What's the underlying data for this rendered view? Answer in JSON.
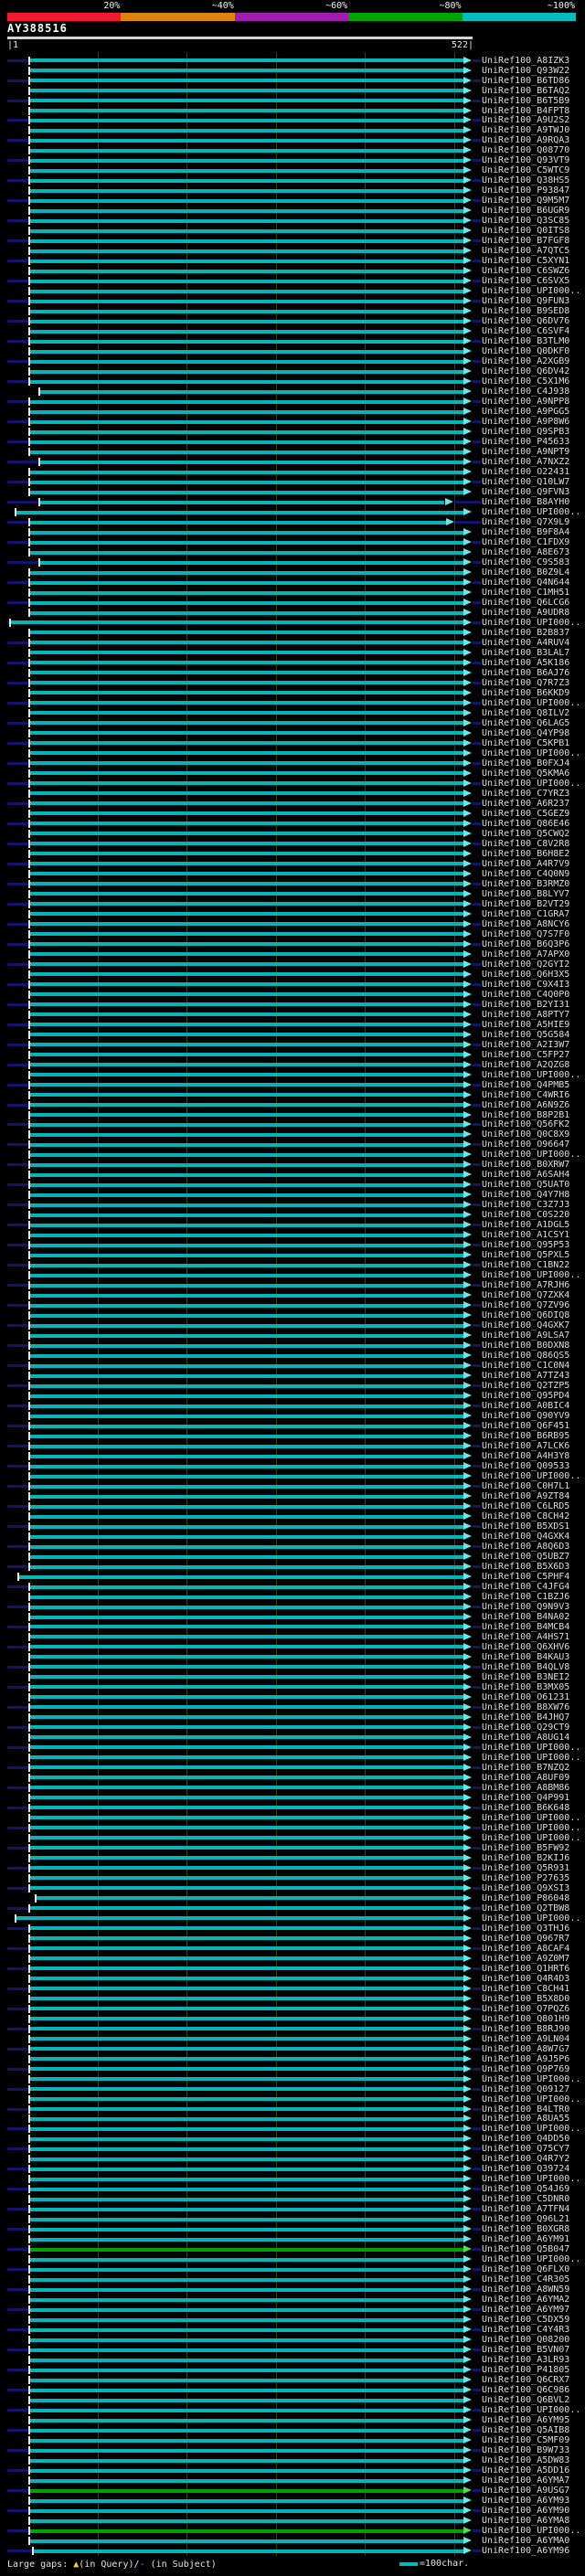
{
  "chart_data": {
    "type": "table",
    "title": "AY388516",
    "query_name": "AY388516",
    "query_length": 522,
    "ruler": {
      "start_label": "|1",
      "end_label": "522|",
      "tick_every_chars": 100
    },
    "identity_scale": [
      {
        "label": "20%",
        "color": "#f31931"
      },
      {
        "label": "~40%",
        "color": "#e0820f"
      },
      {
        "label": "~60%",
        "color": "#a21caf"
      },
      {
        "label": "~80%",
        "color": "#00a400"
      },
      {
        "label": "~100%",
        "color": "#00bcbc"
      }
    ],
    "bar_colors": {
      "~100%": {
        "bar": "#00b6b6",
        "arrow": "#6fe6e6"
      },
      "~80%": {
        "bar": "#00a400",
        "arrow": "#5cd65c"
      }
    },
    "hit_defaults": {
      "from": 27,
      "to": 522,
      "identity": "~100%"
    },
    "hits": [
      {
        "label": "UniRef100_A8IZK3"
      },
      {
        "label": "UniRef100_Q93W22"
      },
      {
        "label": "UniRef100_B6TD86"
      },
      {
        "label": "UniRef100_B6TAQ2"
      },
      {
        "label": "UniRef100_B6T5B9"
      },
      {
        "label": "UniRef100_B4FPT8"
      },
      {
        "label": "UniRef100_A9U2S2"
      },
      {
        "label": "UniRef100_A9TWJ0"
      },
      {
        "label": "UniRef100_A9RQA3"
      },
      {
        "label": "UniRef100_Q08770"
      },
      {
        "label": "UniRef100_Q93VT9"
      },
      {
        "label": "UniRef100_C5WTC9"
      },
      {
        "label": "UniRef100_Q38HS5"
      },
      {
        "label": "UniRef100_P93847"
      },
      {
        "label": "UniRef100_Q9M5M7"
      },
      {
        "label": "UniRef100_B6UGR9"
      },
      {
        "label": "UniRef100_Q3SC85"
      },
      {
        "label": "UniRef100_Q0ITS8"
      },
      {
        "label": "UniRef100_B7FGF8"
      },
      {
        "label": "UniRef100_A7QTC5"
      },
      {
        "label": "UniRef100_C5XYN1"
      },
      {
        "label": "UniRef100_C6SWZ6"
      },
      {
        "label": "UniRef100_C6SVX5"
      },
      {
        "label": "UniRef100_UPI000.."
      },
      {
        "label": "UniRef100_Q9FUN3"
      },
      {
        "label": "UniRef100_B9SED8"
      },
      {
        "label": "UniRef100_Q6DV76"
      },
      {
        "label": "UniRef100_C6SVF4"
      },
      {
        "label": "UniRef100_B3TLM0"
      },
      {
        "label": "UniRef100_Q0DKF0"
      },
      {
        "label": "UniRef100_A2XGB9"
      },
      {
        "label": "UniRef100_Q6DV42"
      },
      {
        "label": "UniRef100_C5X1M6"
      },
      {
        "label": "UniRef100_C4J938",
        "from": 38
      },
      {
        "label": "UniRef100_A9NPP8"
      },
      {
        "label": "UniRef100_A9PGG5"
      },
      {
        "label": "UniRef100_A9P8W6"
      },
      {
        "label": "UniRef100_Q9SPB3"
      },
      {
        "label": "UniRef100_P45633"
      },
      {
        "label": "UniRef100_A9NPT9"
      },
      {
        "label": "UniRef100_A7NXZ2",
        "from": 38
      },
      {
        "label": "UniRef100_O22431"
      },
      {
        "label": "UniRef100_Q10LW7"
      },
      {
        "label": "UniRef100_Q9FVN3"
      },
      {
        "label": "UniRef100_B8AYH0",
        "from": 38,
        "to": 501
      },
      {
        "label": "UniRef100_UPI000..",
        "from": 11
      },
      {
        "label": "UniRef100_Q7X9L9",
        "to": 503
      },
      {
        "label": "UniRef100_B9F8A4"
      },
      {
        "label": "UniRef100_C1FDX9"
      },
      {
        "label": "UniRef100_A8E673"
      },
      {
        "label": "UniRef100_C9S583",
        "from": 38
      },
      {
        "label": "UniRef100_B0Z9L4"
      },
      {
        "label": "UniRef100_Q4N644"
      },
      {
        "label": "UniRef100_C1MH51"
      },
      {
        "label": "UniRef100_Q6LCG6"
      },
      {
        "label": "UniRef100_A9UDR8"
      },
      {
        "label": "UniRef100_UPI000..",
        "from": 5
      },
      {
        "label": "UniRef100_B2B837"
      },
      {
        "label": "UniRef100_A4RUV4"
      },
      {
        "label": "UniRef100_B3LAL7"
      },
      {
        "label": "UniRef100_A5K186"
      },
      {
        "label": "UniRef100_B6AJ76"
      },
      {
        "label": "UniRef100_Q7R7Z3"
      },
      {
        "label": "UniRef100_B6KKD9"
      },
      {
        "label": "UniRef100_UPI000.."
      },
      {
        "label": "UniRef100_Q8ILV2"
      },
      {
        "label": "UniRef100_Q6LAG5"
      },
      {
        "label": "UniRef100_Q4YP98"
      },
      {
        "label": "UniRef100_C5KPB1"
      },
      {
        "label": "UniRef100_UPI000.."
      },
      {
        "label": "UniRef100_B0FXJ4"
      },
      {
        "label": "UniRef100_Q5KMA6"
      },
      {
        "label": "UniRef100_UPI000.."
      },
      {
        "label": "UniRef100_C7YRZ3"
      },
      {
        "label": "UniRef100_A6R237"
      },
      {
        "label": "UniRef100_C5GEZ9"
      },
      {
        "label": "UniRef100_Q86E46"
      },
      {
        "label": "UniRef100_Q5CWQ2"
      },
      {
        "label": "UniRef100_C8V2R8"
      },
      {
        "label": "UniRef100_B6H8E2"
      },
      {
        "label": "UniRef100_A4R7V9"
      },
      {
        "label": "UniRef100_C4Q0N9"
      },
      {
        "label": "UniRef100_B3RMZ0"
      },
      {
        "label": "UniRef100_B8LYV7"
      },
      {
        "label": "UniRef100_B2VT29"
      },
      {
        "label": "UniRef100_C1GRA7"
      },
      {
        "label": "UniRef100_A8NCY6"
      },
      {
        "label": "UniRef100_Q7S7F0"
      },
      {
        "label": "UniRef100_B6Q3P6"
      },
      {
        "label": "UniRef100_A7APX0"
      },
      {
        "label": "UniRef100_Q2GYI2"
      },
      {
        "label": "UniRef100_Q6H3X5"
      },
      {
        "label": "UniRef100_C9X4I3"
      },
      {
        "label": "UniRef100_C4Q0P0"
      },
      {
        "label": "UniRef100_B2YI31"
      },
      {
        "label": "UniRef100_A8PTY7"
      },
      {
        "label": "UniRef100_A5HIE9"
      },
      {
        "label": "UniRef100_Q5G584"
      },
      {
        "label": "UniRef100_A2I3W7"
      },
      {
        "label": "UniRef100_C5FP27"
      },
      {
        "label": "UniRef100_A2QZG8"
      },
      {
        "label": "UniRef100_UPI000.."
      },
      {
        "label": "UniRef100_Q4PMB5"
      },
      {
        "label": "UniRef100_C4WRI6"
      },
      {
        "label": "UniRef100_A6N9Z6"
      },
      {
        "label": "UniRef100_B8P2B1"
      },
      {
        "label": "UniRef100_Q56FK2"
      },
      {
        "label": "UniRef100_Q0C8X9"
      },
      {
        "label": "UniRef100_O96647"
      },
      {
        "label": "UniRef100_UPI000.."
      },
      {
        "label": "UniRef100_B0XRW7"
      },
      {
        "label": "UniRef100_A6SAH4"
      },
      {
        "label": "UniRef100_Q5UAT0"
      },
      {
        "label": "UniRef100_Q4Y7H8"
      },
      {
        "label": "UniRef100_C3Z7J3"
      },
      {
        "label": "UniRef100_C0S220"
      },
      {
        "label": "UniRef100_A1DGL5"
      },
      {
        "label": "UniRef100_A1CSY1"
      },
      {
        "label": "UniRef100_Q95P53"
      },
      {
        "label": "UniRef100_Q5PXL5"
      },
      {
        "label": "UniRef100_C1BN22"
      },
      {
        "label": "UniRef100_UPI000.."
      },
      {
        "label": "UniRef100_A7RJH6"
      },
      {
        "label": "UniRef100_Q7ZXK4"
      },
      {
        "label": "UniRef100_Q7ZV96"
      },
      {
        "label": "UniRef100_Q6DIQ8"
      },
      {
        "label": "UniRef100_Q4GXK7"
      },
      {
        "label": "UniRef100_A9LSA7"
      },
      {
        "label": "UniRef100_B0DXN8"
      },
      {
        "label": "UniRef100_Q86QS5"
      },
      {
        "label": "UniRef100_C1C0N4"
      },
      {
        "label": "UniRef100_A7TZ43"
      },
      {
        "label": "UniRef100_Q2TZP5"
      },
      {
        "label": "UniRef100_Q95PD4"
      },
      {
        "label": "UniRef100_A0BIC4"
      },
      {
        "label": "UniRef100_Q90YV9"
      },
      {
        "label": "UniRef100_Q6F451"
      },
      {
        "label": "UniRef100_B6RB95"
      },
      {
        "label": "UniRef100_A7LCK6"
      },
      {
        "label": "UniRef100_A4H3Y8"
      },
      {
        "label": "UniRef100_Q09533"
      },
      {
        "label": "UniRef100_UPI000.."
      },
      {
        "label": "UniRef100_C0H7L1"
      },
      {
        "label": "UniRef100_A9ZT84"
      },
      {
        "label": "UniRef100_C6LRD5"
      },
      {
        "label": "UniRef100_C8CH42"
      },
      {
        "label": "UniRef100_B5XDS1"
      },
      {
        "label": "UniRef100_Q4GXK4"
      },
      {
        "label": "UniRef100_A8Q6D3"
      },
      {
        "label": "UniRef100_Q5UBZ7"
      },
      {
        "label": "UniRef100_B5X6D3"
      },
      {
        "label": "UniRef100_C5PHF4",
        "from": 14
      },
      {
        "label": "UniRef100_C4JFG4"
      },
      {
        "label": "UniRef100_C1BZJ6"
      },
      {
        "label": "UniRef100_Q9N9V3"
      },
      {
        "label": "UniRef100_B4NA02"
      },
      {
        "label": "UniRef100_B4MCB4"
      },
      {
        "label": "UniRef100_A4HS71"
      },
      {
        "label": "UniRef100_Q6XHV6"
      },
      {
        "label": "UniRef100_B4KAU3"
      },
      {
        "label": "UniRef100_B4QLV8"
      },
      {
        "label": "UniRef100_B3NEI2"
      },
      {
        "label": "UniRef100_B3MX05"
      },
      {
        "label": "UniRef100_O61231"
      },
      {
        "label": "UniRef100_B8XW76"
      },
      {
        "label": "UniRef100_B4JHQ7"
      },
      {
        "label": "UniRef100_Q29CT9"
      },
      {
        "label": "UniRef100_A8UG14"
      },
      {
        "label": "UniRef100_UPI000.."
      },
      {
        "label": "UniRef100_UPI000.."
      },
      {
        "label": "UniRef100_B7NZQ2"
      },
      {
        "label": "UniRef100_A8UF09"
      },
      {
        "label": "UniRef100_A8BM86"
      },
      {
        "label": "UniRef100_Q4P991"
      },
      {
        "label": "UniRef100_B6K648"
      },
      {
        "label": "UniRef100_UPI000.."
      },
      {
        "label": "UniRef100_UPI000.."
      },
      {
        "label": "UniRef100_UPI000.."
      },
      {
        "label": "UniRef100_B5FW92"
      },
      {
        "label": "UniRef100_B2KIJ6"
      },
      {
        "label": "UniRef100_Q5R931"
      },
      {
        "label": "UniRef100_P27635"
      },
      {
        "label": "UniRef100_Q9XSI3"
      },
      {
        "label": "UniRef100_P86048",
        "from": 34
      },
      {
        "label": "UniRef100_Q2TBW8"
      },
      {
        "label": "UniRef100_UPI000..",
        "from": 11
      },
      {
        "label": "UniRef100_Q3THJ6"
      },
      {
        "label": "UniRef100_Q967R7"
      },
      {
        "label": "UniRef100_A8CAF4"
      },
      {
        "label": "UniRef100_A9Z0M7"
      },
      {
        "label": "UniRef100_Q1HRT6"
      },
      {
        "label": "UniRef100_Q4R4D3"
      },
      {
        "label": "UniRef100_C8CH41"
      },
      {
        "label": "UniRef100_B5X8D0"
      },
      {
        "label": "UniRef100_Q7PQZ6"
      },
      {
        "label": "UniRef100_Q801H9"
      },
      {
        "label": "UniRef100_B8RJ90"
      },
      {
        "label": "UniRef100_A9LN04"
      },
      {
        "label": "UniRef100_A8W7G7"
      },
      {
        "label": "UniRef100_A9J5P6"
      },
      {
        "label": "UniRef100_Q9P769"
      },
      {
        "label": "UniRef100_UPI000.."
      },
      {
        "label": "UniRef100_Q09127"
      },
      {
        "label": "UniRef100_UPI000.."
      },
      {
        "label": "UniRef100_B4LTR0"
      },
      {
        "label": "UniRef100_A8UA55"
      },
      {
        "label": "UniRef100_UPI000.."
      },
      {
        "label": "UniRef100_Q4DD50"
      },
      {
        "label": "UniRef100_Q75CY7"
      },
      {
        "label": "UniRef100_Q4R7Y2"
      },
      {
        "label": "UniRef100_Q39724"
      },
      {
        "label": "UniRef100_UPI000.."
      },
      {
        "label": "UniRef100_Q54J69"
      },
      {
        "label": "UniRef100_C5DNR0"
      },
      {
        "label": "UniRef100_A7TFN4"
      },
      {
        "label": "UniRef100_Q96L21"
      },
      {
        "label": "UniRef100_B0XGR8"
      },
      {
        "label": "UniRef100_A6YM91"
      },
      {
        "label": "UniRef100_Q5B047",
        "identity": "~80%"
      },
      {
        "label": "UniRef100_UPI000.."
      },
      {
        "label": "UniRef100_Q6FLX0"
      },
      {
        "label": "UniRef100_C4R305"
      },
      {
        "label": "UniRef100_A8WN59"
      },
      {
        "label": "UniRef100_A6YMA2"
      },
      {
        "label": "UniRef100_A6YM97"
      },
      {
        "label": "UniRef100_C5DX59"
      },
      {
        "label": "UniRef100_C4Y4R3"
      },
      {
        "label": "UniRef100_Q08200"
      },
      {
        "label": "UniRef100_B5VN07"
      },
      {
        "label": "UniRef100_A3LR93"
      },
      {
        "label": "UniRef100_P41805"
      },
      {
        "label": "UniRef100_Q6CRX7"
      },
      {
        "label": "UniRef100_Q6C986"
      },
      {
        "label": "UniRef100_Q6BVL2"
      },
      {
        "label": "UniRef100_UPI000.."
      },
      {
        "label": "UniRef100_A6YM95"
      },
      {
        "label": "UniRef100_Q5AIB8"
      },
      {
        "label": "UniRef100_C5MF09"
      },
      {
        "label": "UniRef100_B9W733"
      },
      {
        "label": "UniRef100_A5DW83"
      },
      {
        "label": "UniRef100_A5DD16"
      },
      {
        "label": "UniRef100_A6YMA7"
      },
      {
        "label": "UniRef100_A9USG7",
        "identity": "~80%"
      },
      {
        "label": "UniRef100_A6YM93"
      },
      {
        "label": "UniRef100_A6YM90"
      },
      {
        "label": "UniRef100_A6YMA8"
      },
      {
        "label": "UniRef100_UPI000..",
        "identity": "~80%"
      },
      {
        "label": "UniRef100_A6YMA0"
      },
      {
        "label": "UniRef100_A6YM96",
        "from": 31
      }
    ]
  },
  "footer": {
    "part1": "Large gaps: ",
    "gap_query_symbol": "▲",
    "part2": "(in Query)/",
    "gap_subject_symbol": "-",
    "part3": " (in Subject)",
    "legend_label": "=100char."
  }
}
